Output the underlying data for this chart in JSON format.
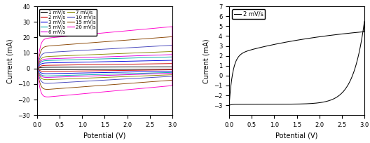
{
  "left_plot": {
    "xlabel": "Potential (V)",
    "ylabel": "Current (mA)",
    "xlim": [
      0,
      3.0
    ],
    "ylim": [
      -30,
      40
    ],
    "yticks": [
      -30,
      -20,
      -10,
      0,
      10,
      20,
      30,
      40
    ],
    "xticks": [
      0.0,
      0.5,
      1.0,
      1.5,
      2.0,
      2.5,
      3.0
    ],
    "curves": [
      {
        "label": "1 mV/s",
        "color": "#000000",
        "cap": 0.8,
        "slope": 0.3
      },
      {
        "label": "2 mV/s",
        "color": "#cc0000",
        "cap": 2.0,
        "slope": 1.2
      },
      {
        "label": "3 mV/s",
        "color": "#0000dd",
        "cap": 3.5,
        "slope": 1.8
      },
      {
        "label": "5 mV/s",
        "color": "#00aaaa",
        "cap": 5.0,
        "slope": 2.5
      },
      {
        "label": "6 mV/s",
        "color": "#dd00dd",
        "cap": 6.0,
        "slope": 3.0
      },
      {
        "label": "7 mV/s",
        "color": "#888800",
        "cap": 7.5,
        "slope": 3.5
      },
      {
        "label": "10 mV/s",
        "color": "#4444bb",
        "cap": 10.0,
        "slope": 5.0
      },
      {
        "label": "15 mV/s",
        "color": "#884400",
        "cap": 14.0,
        "slope": 6.5
      },
      {
        "label": "20 mV/s",
        "color": "#ff00cc",
        "cap": 19.0,
        "slope": 8.0
      }
    ]
  },
  "right_plot": {
    "xlabel": "Potential (V)",
    "ylabel": "Current (mA)",
    "xlim": [
      0,
      3.0
    ],
    "ylim": [
      -4,
      7
    ],
    "yticks": [
      -3,
      -2,
      -1,
      0,
      1,
      2,
      3,
      4,
      5,
      6,
      7
    ],
    "xticks": [
      0.0,
      0.5,
      1.0,
      1.5,
      2.0,
      2.5,
      3.0
    ],
    "curve_label": "2 mV/s",
    "curve_color": "#000000"
  }
}
